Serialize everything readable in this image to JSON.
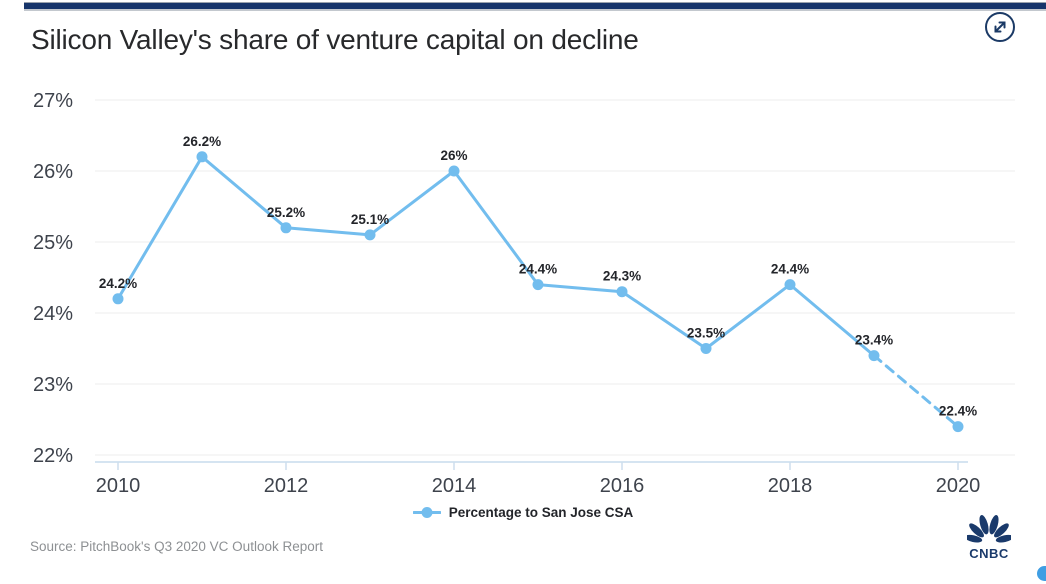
{
  "header": {
    "title": "Silicon Valley's share of venture capital on decline"
  },
  "chart_data": {
    "type": "line",
    "title": "Silicon Valley's share of venture capital on decline",
    "x": [
      2010,
      2011,
      2012,
      2013,
      2014,
      2015,
      2016,
      2017,
      2018,
      2019,
      2020
    ],
    "series": [
      {
        "name": "Percentage to San Jose CSA",
        "values": [
          24.2,
          26.2,
          25.2,
          25.1,
          26.0,
          24.4,
          24.3,
          23.5,
          24.4,
          23.4,
          22.4
        ],
        "point_labels": [
          "24.2%",
          "26.2%",
          "25.2%",
          "25.1%",
          "26%",
          "24.4%",
          "24.3%",
          "23.5%",
          "24.4%",
          "23.4%",
          "22.4%"
        ]
      }
    ],
    "ylim": [
      22,
      27
    ],
    "yticks": [
      27,
      26,
      25,
      24,
      23,
      22
    ],
    "ytick_labels": [
      "27%",
      "26%",
      "25%",
      "24%",
      "23%",
      "22%"
    ],
    "xticks": [
      2010,
      2012,
      2014,
      2016,
      2018,
      2020
    ],
    "grid": true,
    "legend_position": "bottom",
    "dashed_segment_from": 2019,
    "line_color": "#72bdee"
  },
  "legend": {
    "label": "Percentage to San Jose CSA"
  },
  "footer": {
    "source": "Source: PitchBook's Q3 2020 VC Outlook Report",
    "logo_text": "CNBC"
  },
  "icons": {
    "top_right": "expand-icon",
    "bottom_right_logo": "cnbc-peacock-icon"
  },
  "colors": {
    "accent_blue": "#72bdee",
    "navy": "#17356b",
    "grid_gray": "#ececec",
    "label_dark": "#23252a",
    "source_gray": "#8d9093"
  }
}
